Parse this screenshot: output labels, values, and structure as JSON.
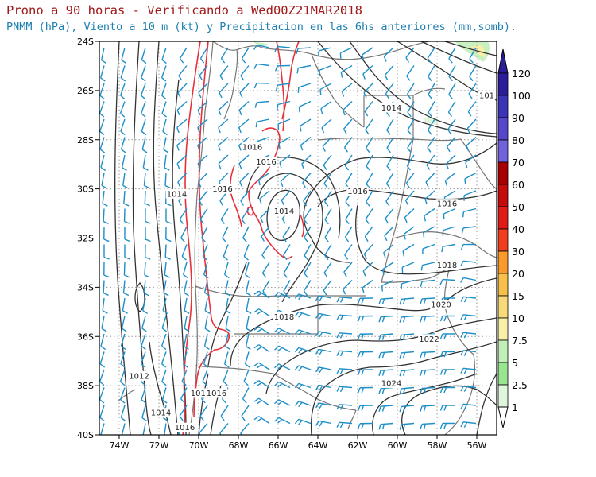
{
  "title": "Prono a 90 horas - Verificando a Wed00Z21MAR2018",
  "subtitle": "PNMM (hPa), Viento a 10 m (kt) y Precipitacion en las 6hs anteriores (mm,somb).",
  "lon_ticks": [
    "74W",
    "72W",
    "70W",
    "68W",
    "66W",
    "64W",
    "62W",
    "60W",
    "58W",
    "56W"
  ],
  "lat_ticks": [
    "24S",
    "26S",
    "28S",
    "30S",
    "32S",
    "34S",
    "36S",
    "38S",
    "40S"
  ],
  "colors": {
    "isobar": "#333333",
    "isobar_1016": "#e8303a",
    "wind_barb": "#1e8fc8",
    "borders": "#777777",
    "grid": "#9a9a9a",
    "precip_light": "#c8f0c0"
  },
  "isobar_labels": [
    {
      "text": "1014",
      "lon": -60.3,
      "lat": -26.7
    },
    {
      "text": "1016",
      "lon": -67.3,
      "lat": -28.3
    },
    {
      "text": "1016",
      "lon": -66.6,
      "lat": -28.9
    },
    {
      "text": "1016",
      "lon": -68.8,
      "lat": -30.0
    },
    {
      "text": "1014",
      "lon": -71.1,
      "lat": -30.2
    },
    {
      "text": "1014",
      "lon": -65.7,
      "lat": -30.9
    },
    {
      "text": "1016",
      "lon": -62.0,
      "lat": -30.1
    },
    {
      "text": "1016",
      "lon": -57.5,
      "lat": -30.6
    },
    {
      "text": "1018",
      "lon": -57.5,
      "lat": -33.1
    },
    {
      "text": "1018",
      "lon": -65.7,
      "lat": -35.2
    },
    {
      "text": "1020",
      "lon": -57.8,
      "lat": -34.7
    },
    {
      "text": "1022",
      "lon": -58.4,
      "lat": -36.1
    },
    {
      "text": "1024",
      "lon": -60.3,
      "lat": -37.9
    },
    {
      "text": "1012",
      "lon": -73.0,
      "lat": -37.6
    },
    {
      "text": "1016",
      "lon": -69.9,
      "lat": -38.3
    },
    {
      "text": "1016",
      "lon": -69.1,
      "lat": -38.3
    },
    {
      "text": "1014",
      "lon": -71.9,
      "lat": -39.1
    },
    {
      "text": "1016",
      "lon": -70.7,
      "lat": -39.7
    },
    {
      "text": "101",
      "lon": -55.5,
      "lat": -26.2
    }
  ],
  "colorbar": {
    "labels": [
      "120",
      "100",
      "90",
      "80",
      "70",
      "60",
      "50",
      "40",
      "30",
      "20",
      "15",
      "10",
      "7.5",
      "5",
      "2.5",
      "1"
    ],
    "colors": [
      "#2b1c9a",
      "#3d33b8",
      "#5646cc",
      "#7261dc",
      "#a80000",
      "#c40a0a",
      "#e01a14",
      "#f33e1e",
      "#fb9a2a",
      "#f8c04a",
      "#f9da78",
      "#f8f0a8",
      "#c0f0b8",
      "#98e690",
      "#e0f6dc",
      "#ffffff"
    ]
  }
}
